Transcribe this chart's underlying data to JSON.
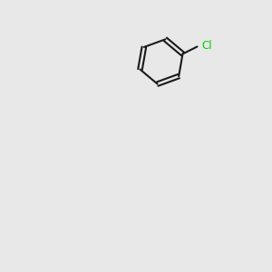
{
  "background_color": "#e8e8e8",
  "bond_color": "#1a1a1a",
  "nitrogen_color": "#0000ff",
  "oxygen_color": "#ff0000",
  "chlorine_color": "#00cc00",
  "carbon_color": "#1a1a1a",
  "figsize": [
    3.0,
    3.0
  ],
  "dpi": 100
}
